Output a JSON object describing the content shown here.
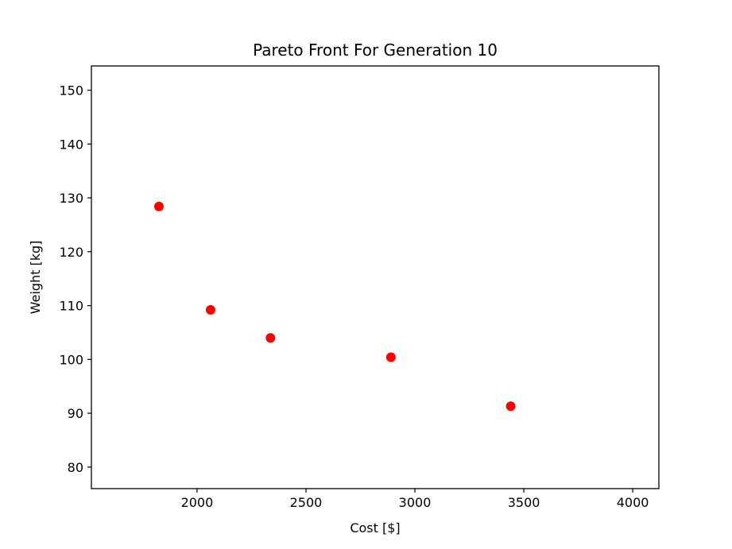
{
  "chart_data": {
    "type": "scatter",
    "title": "Pareto Front For Generation 10",
    "xlabel": "Cost [$]",
    "ylabel": "Weight [kg]",
    "xlim": [
      1515,
      4120
    ],
    "ylim": [
      76,
      154.5
    ],
    "xticks": [
      2000,
      2500,
      3000,
      3500,
      4000
    ],
    "yticks": [
      80,
      90,
      100,
      110,
      120,
      130,
      140,
      150
    ],
    "grid": false,
    "marker_color": "#ff0000",
    "points": [
      {
        "x": 1825,
        "y": 128.4
      },
      {
        "x": 2062,
        "y": 109.2
      },
      {
        "x": 2337,
        "y": 104.0
      },
      {
        "x": 2890,
        "y": 100.4
      },
      {
        "x": 3440,
        "y": 91.3
      }
    ]
  }
}
